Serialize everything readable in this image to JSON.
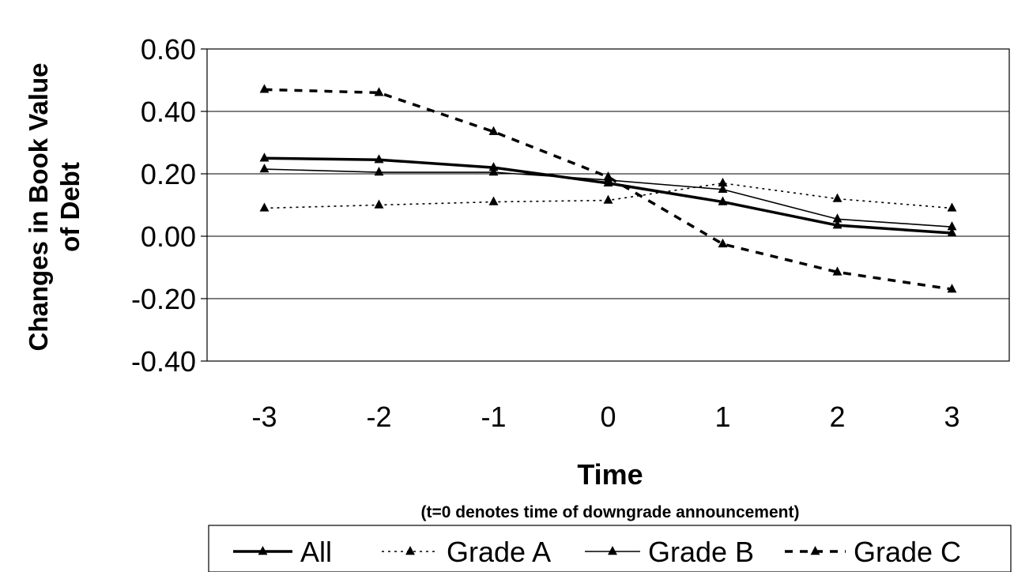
{
  "chart_data": {
    "type": "line",
    "x": [
      -3,
      -2,
      -1,
      0,
      1,
      2,
      3
    ],
    "x_tick_labels": [
      "-3",
      "-2",
      "-1",
      "0",
      "1",
      "2",
      "3"
    ],
    "ylim": [
      -0.4,
      0.6
    ],
    "y_ticks": [
      -0.4,
      -0.2,
      0.0,
      0.2,
      0.4,
      0.6
    ],
    "y_tick_labels": [
      "-0.40",
      "-0.20",
      "0.00",
      "0.20",
      "0.40",
      "0.60"
    ],
    "ylabel_line1": "Changes in Book Value",
    "ylabel_line2": "of Debt",
    "xlabel": "Time",
    "xlabel_note": "(t=0 denotes time of downgrade announcement)",
    "grid": "horizontal",
    "legend_position": "bottom",
    "series": [
      {
        "name": "All",
        "values": [
          0.25,
          0.245,
          0.22,
          0.17,
          0.11,
          0.035,
          0.01
        ],
        "style": "thick-solid",
        "color": "#000000"
      },
      {
        "name": "Grade A",
        "values": [
          0.09,
          0.1,
          0.11,
          0.115,
          0.17,
          0.12,
          0.09
        ],
        "style": "dotted",
        "color": "#000000"
      },
      {
        "name": "Grade B",
        "values": [
          0.215,
          0.205,
          0.205,
          0.18,
          0.15,
          0.055,
          0.03
        ],
        "style": "thin-solid",
        "color": "#000000"
      },
      {
        "name": "Grade C",
        "values": [
          0.47,
          0.46,
          0.335,
          0.19,
          -0.025,
          -0.115,
          -0.17
        ],
        "style": "dashed",
        "color": "#000000"
      }
    ]
  }
}
